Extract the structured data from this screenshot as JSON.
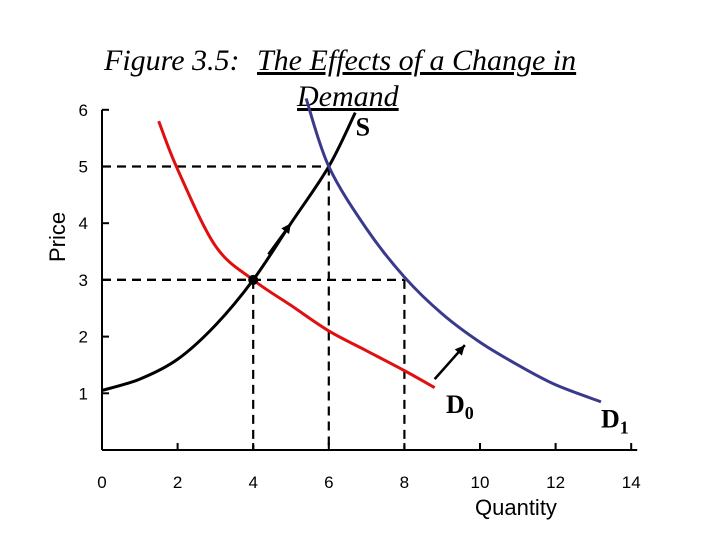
{
  "chart_data": {
    "type": "line",
    "title": "Figure 3.5: The Effects of a Change in Demand",
    "title_lines": [
      "Figure 3.5: ",
      "The Effects of a Change in",
      "Demand"
    ],
    "xlabel": "Quantity",
    "ylabel": "Price",
    "xlim": [
      0,
      14
    ],
    "ylim": [
      0,
      6
    ],
    "x_ticks": [
      "0",
      "2",
      "4",
      "6",
      "8",
      "10",
      "12",
      "14"
    ],
    "y_ticks": [
      "1",
      "2",
      "3",
      "4",
      "5",
      "6"
    ],
    "series": [
      {
        "name": "S",
        "color": "#000000",
        "points": [
          [
            0,
            1.05
          ],
          [
            1,
            1.25
          ],
          [
            2,
            1.6
          ],
          [
            3,
            2.2
          ],
          [
            4,
            3.0
          ],
          [
            5,
            4.0
          ],
          [
            6,
            5.0
          ],
          [
            6.7,
            5.95
          ]
        ]
      },
      {
        "name": "D0",
        "color": "#e01010",
        "points": [
          [
            1.5,
            5.8
          ],
          [
            2,
            4.95
          ],
          [
            3,
            3.6
          ],
          [
            4,
            3.0
          ],
          [
            5,
            2.55
          ],
          [
            6,
            2.1
          ],
          [
            7,
            1.75
          ],
          [
            8,
            1.4
          ],
          [
            8.8,
            1.1
          ]
        ]
      },
      {
        "name": "D1",
        "color": "#3a3a8c",
        "points": [
          [
            5.4,
            6.2
          ],
          [
            6,
            5.0
          ],
          [
            7,
            3.9
          ],
          [
            8,
            3.05
          ],
          [
            9,
            2.4
          ],
          [
            10,
            1.9
          ],
          [
            11,
            1.5
          ],
          [
            12,
            1.15
          ],
          [
            13.2,
            0.85
          ]
        ]
      }
    ],
    "curve_labels": {
      "S": "S",
      "D0": {
        "letter": "D",
        "sub": "0"
      },
      "D1": {
        "letter": "D",
        "sub": "1"
      }
    },
    "equilibria": [
      {
        "x": 4,
        "y": 3,
        "marker": "dot"
      },
      {
        "x": 6,
        "y": 5,
        "marker": "none"
      }
    ],
    "dashed_guides": [
      {
        "x": 4,
        "y": 3
      },
      {
        "x": 6,
        "y": 5
      },
      {
        "x": 8,
        "y": 3
      }
    ],
    "arrows": [
      {
        "from": [
          4.4,
          3.45
        ],
        "to": [
          5.0,
          4.0
        ],
        "note": "along S"
      },
      {
        "from": [
          8.8,
          1.25
        ],
        "to": [
          9.6,
          1.85
        ],
        "note": "demand shift"
      }
    ],
    "legend": "none",
    "grid": false
  }
}
